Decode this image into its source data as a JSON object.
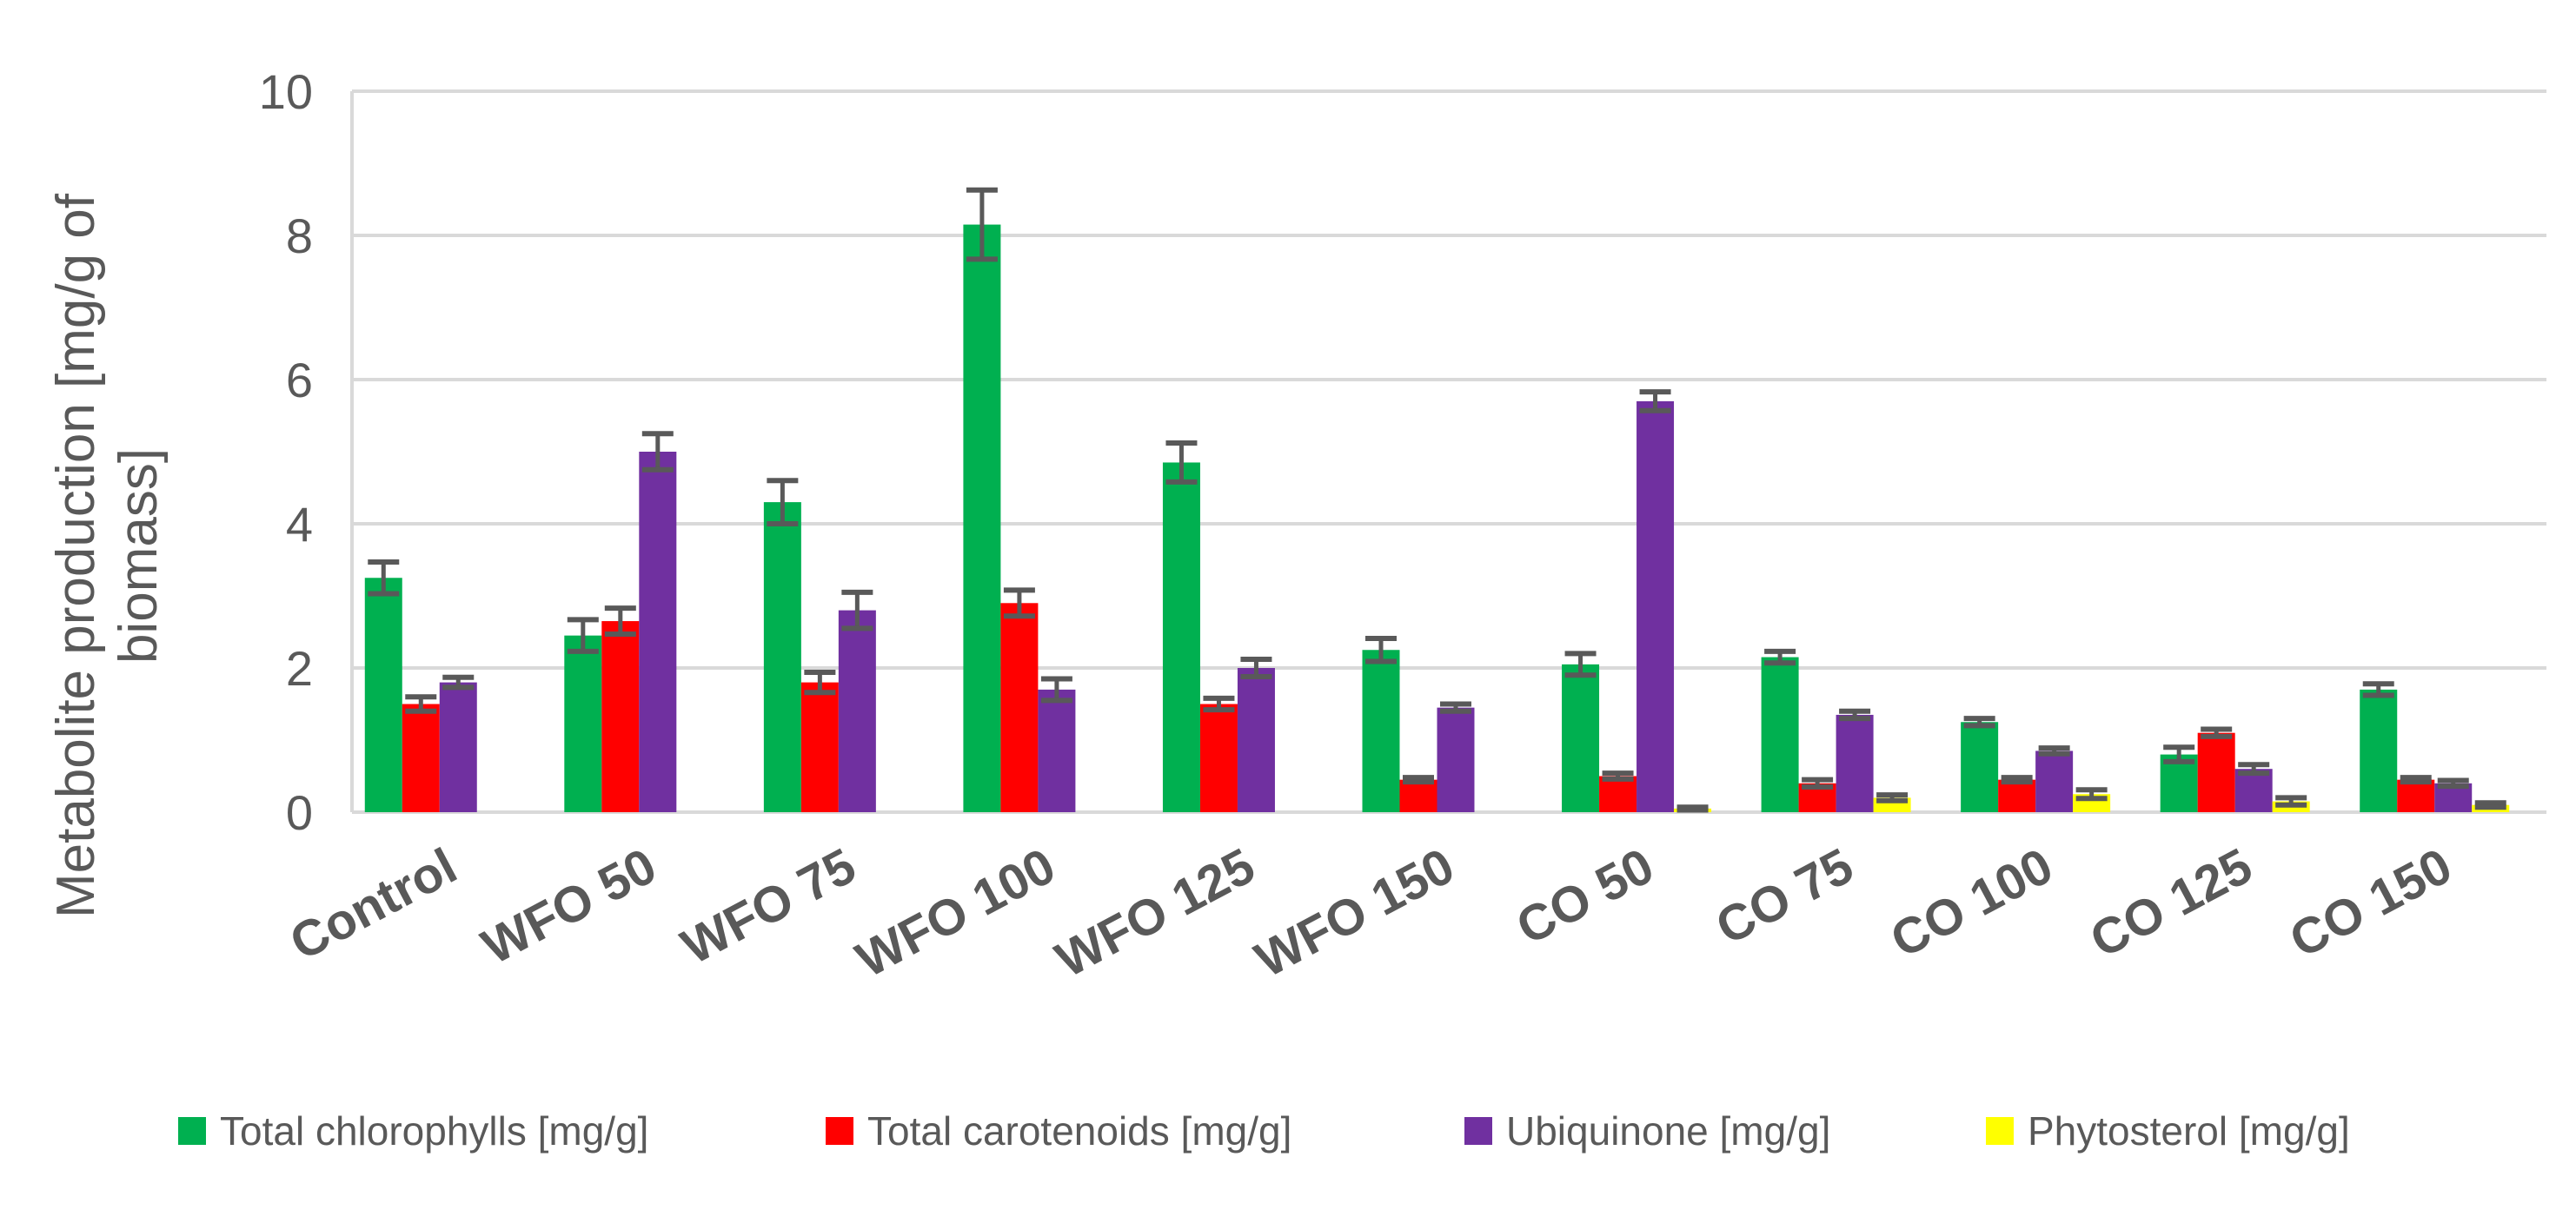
{
  "chart_data": {
    "type": "bar",
    "title": "",
    "xlabel": "",
    "ylabel_lines": [
      "Metabolite production [mg/g of",
      "biomass]"
    ],
    "ylim": [
      0,
      10
    ],
    "yticks": [
      0,
      2,
      4,
      6,
      8,
      10
    ],
    "ytick_labels": [
      "0",
      "2",
      "4",
      "6",
      "8",
      "10"
    ],
    "grid": true,
    "legend_position": "bottom",
    "categories": [
      "Control",
      "WFO 50",
      "WFO 75",
      "WFO 100",
      "WFO 125",
      "WFO 150",
      "CO 50",
      "CO 75",
      "CO 100",
      "CO 125",
      "CO 150"
    ],
    "series": [
      {
        "name": "Total chlorophylls [mg/g]",
        "color": "#00B050",
        "values": [
          3.25,
          2.45,
          4.3,
          8.15,
          4.85,
          2.25,
          2.05,
          2.15,
          1.25,
          0.8,
          1.7
        ],
        "errors": [
          0.22,
          0.22,
          0.3,
          0.48,
          0.27,
          0.16,
          0.15,
          0.08,
          0.05,
          0.1,
          0.08
        ]
      },
      {
        "name": "Total carotenoids [mg/g]",
        "color": "#FF0000",
        "values": [
          1.5,
          2.65,
          1.8,
          2.9,
          1.5,
          0.45,
          0.5,
          0.4,
          0.45,
          1.1,
          0.45
        ],
        "errors": [
          0.1,
          0.18,
          0.14,
          0.18,
          0.08,
          0.03,
          0.04,
          0.05,
          0.03,
          0.05,
          0.03
        ]
      },
      {
        "name": "Ubiquinone [mg/g]",
        "color": "#7030A0",
        "values": [
          1.8,
          5.0,
          2.8,
          1.7,
          2.0,
          1.45,
          5.7,
          1.35,
          0.85,
          0.6,
          0.4
        ],
        "errors": [
          0.07,
          0.25,
          0.25,
          0.15,
          0.12,
          0.05,
          0.13,
          0.05,
          0.04,
          0.06,
          0.04
        ]
      },
      {
        "name": "Phytosterol [mg/g]",
        "color": "#FFFF00",
        "values": [
          0,
          0,
          0,
          0,
          0,
          0,
          0.05,
          0.2,
          0.25,
          0.15,
          0.1
        ],
        "errors": [
          0,
          0,
          0,
          0,
          0,
          0,
          0.02,
          0.04,
          0.06,
          0.05,
          0.03
        ]
      }
    ]
  },
  "colors": {
    "grid": "#D9D9D9",
    "axis": "#D9D9D9",
    "error_bar": "#595959",
    "text": "#595959"
  }
}
